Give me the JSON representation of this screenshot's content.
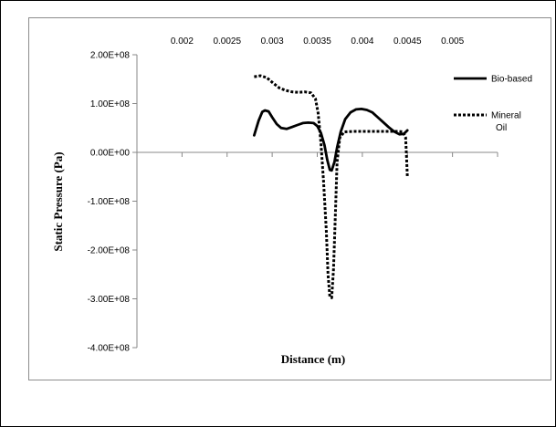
{
  "chart_data": {
    "type": "line",
    "title": "",
    "xlabel": "Distance (m)",
    "ylabel": "Static Pressure (Pa)",
    "xlim": [
      0.0015,
      0.0055
    ],
    "ylim": [
      -400000000,
      200000000
    ],
    "x_ticks": [
      0.002,
      0.0025,
      0.003,
      0.0035,
      0.004,
      0.0045,
      0.005
    ],
    "x_tick_labels": [
      "0.002",
      "0.0025",
      "0.003",
      "0.0035",
      "0.004",
      "0.0045",
      "0.005"
    ],
    "y_ticks": [
      200000000,
      100000000,
      0,
      -100000000,
      -200000000,
      -300000000,
      -400000000
    ],
    "y_tick_labels": [
      "2.00E+08",
      "1.00E+08",
      "0.00E+00",
      "-1.00E+08",
      "-2.00E+08",
      "-3.00E+08",
      "-4.00E+08"
    ],
    "x_axis_crosses_at_y": 0,
    "grid": false,
    "legend_position": "right",
    "series": [
      {
        "name": "Bio-based",
        "style": "solid",
        "color": "#000000",
        "points": [
          [
            0.0028,
            35000000
          ],
          [
            0.00285,
            65000000
          ],
          [
            0.00289,
            83000000
          ],
          [
            0.00292,
            86000000
          ],
          [
            0.00296,
            84000000
          ],
          [
            0.003,
            72000000
          ],
          [
            0.00305,
            58000000
          ],
          [
            0.0031,
            50000000
          ],
          [
            0.00316,
            48000000
          ],
          [
            0.00322,
            52000000
          ],
          [
            0.00328,
            56000000
          ],
          [
            0.00334,
            60000000
          ],
          [
            0.0034,
            61000000
          ],
          [
            0.00346,
            60000000
          ],
          [
            0.0035,
            54000000
          ],
          [
            0.00354,
            40000000
          ],
          [
            0.00358,
            15000000
          ],
          [
            0.00361,
            -15000000
          ],
          [
            0.00364,
            -36000000
          ],
          [
            0.00366,
            -37000000
          ],
          [
            0.00369,
            -20000000
          ],
          [
            0.00372,
            10000000
          ],
          [
            0.00376,
            42000000
          ],
          [
            0.00381,
            68000000
          ],
          [
            0.00387,
            82000000
          ],
          [
            0.00393,
            88000000
          ],
          [
            0.00399,
            89000000
          ],
          [
            0.00405,
            87000000
          ],
          [
            0.00411,
            82000000
          ],
          [
            0.00417,
            72000000
          ],
          [
            0.00423,
            62000000
          ],
          [
            0.00429,
            52000000
          ],
          [
            0.00435,
            43000000
          ],
          [
            0.00441,
            37000000
          ],
          [
            0.00446,
            38000000
          ],
          [
            0.0045,
            45000000
          ]
        ]
      },
      {
        "name": "Mineral Oil",
        "style": "dotted",
        "color": "#000000",
        "points": [
          [
            0.0028,
            155000000
          ],
          [
            0.00287,
            157000000
          ],
          [
            0.00294,
            153000000
          ],
          [
            0.00301,
            142000000
          ],
          [
            0.00308,
            132000000
          ],
          [
            0.00315,
            127000000
          ],
          [
            0.00322,
            124000000
          ],
          [
            0.00329,
            123000000
          ],
          [
            0.00336,
            124000000
          ],
          [
            0.00343,
            122000000
          ],
          [
            0.00348,
            110000000
          ],
          [
            0.00351,
            80000000
          ],
          [
            0.00354,
            20000000
          ],
          [
            0.00357,
            -60000000
          ],
          [
            0.0036,
            -160000000
          ],
          [
            0.00362,
            -250000000
          ],
          [
            0.00364,
            -296000000
          ],
          [
            0.00366,
            -298000000
          ],
          [
            0.00368,
            -240000000
          ],
          [
            0.0037,
            -130000000
          ],
          [
            0.00372,
            -20000000
          ],
          [
            0.00375,
            30000000
          ],
          [
            0.0038,
            42000000
          ],
          [
            0.0039,
            43000000
          ],
          [
            0.004,
            43000000
          ],
          [
            0.0041,
            43000000
          ],
          [
            0.0042,
            43000000
          ],
          [
            0.0043,
            43000000
          ],
          [
            0.0044,
            43000000
          ],
          [
            0.00445,
            42000000
          ],
          [
            0.00448,
            30000000
          ],
          [
            0.00449,
            -10000000
          ],
          [
            0.0045,
            -50000000
          ]
        ]
      }
    ]
  }
}
